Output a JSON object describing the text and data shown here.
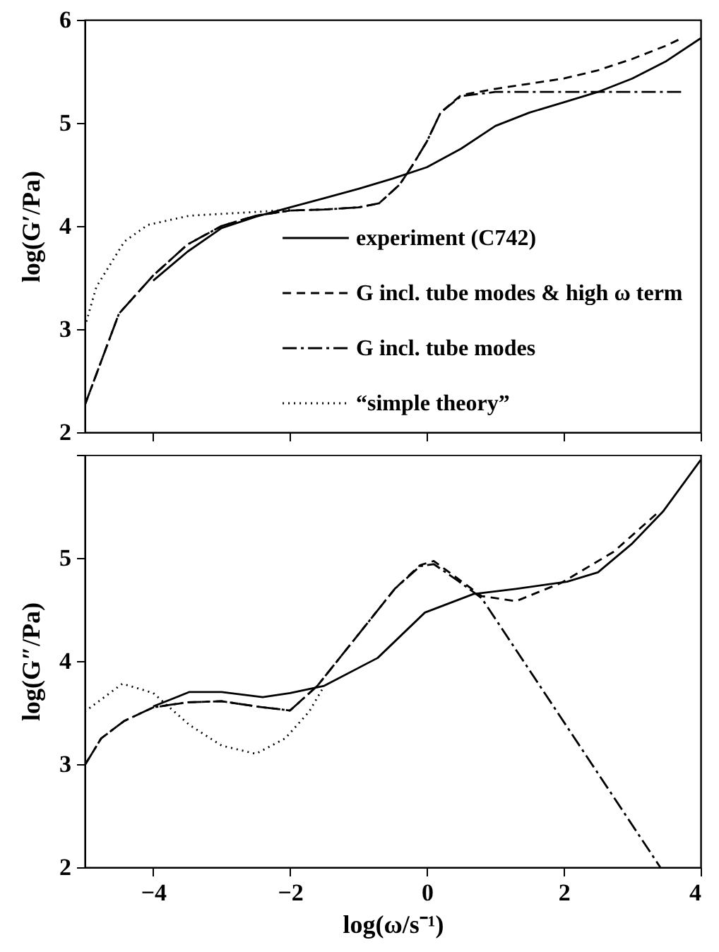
{
  "chart_data": [
    {
      "type": "line",
      "ylabel": "log(G′/Pa)",
      "xlim": [
        -5,
        4
      ],
      "xticks": [
        -4,
        -2,
        0,
        2,
        4
      ],
      "ylim": [
        2,
        6
      ],
      "yticks": [
        2,
        3,
        4,
        5,
        6
      ],
      "tick_labels": "y",
      "legend": "bottom right",
      "grid": false,
      "marker": "none",
      "series": [
        {
          "name": "experiment (C742)",
          "color": "#000000",
          "line_style": "solid",
          "x": [
            -4,
            -3.5,
            -3,
            -2.5,
            -2,
            -1.5,
            -1,
            -0.5,
            0,
            0.5,
            1,
            1.5,
            2,
            2.5,
            3,
            3.5,
            4
          ],
          "values": [
            3.47,
            3.75,
            3.98,
            4.09,
            4.18,
            4.27,
            4.36,
            4.46,
            4.57,
            4.75,
            4.97,
            5.1,
            5.2,
            5.3,
            5.43,
            5.6,
            5.82
          ]
        },
        {
          "name": "G incl. tube modes & high ω term",
          "color": "#000000",
          "line_style": "dashed",
          "x": [
            -5,
            -4.5,
            -4,
            -3.5,
            -3,
            -2.5,
            -2,
            -1.5,
            -1,
            -0.7,
            -0.4,
            -0.2,
            0,
            0.2,
            0.5,
            1,
            1.5,
            2,
            2.5,
            3,
            3.5,
            3.72
          ],
          "values": [
            2.26,
            3.15,
            3.52,
            3.82,
            4.0,
            4.1,
            4.15,
            4.16,
            4.18,
            4.22,
            4.4,
            4.6,
            4.82,
            5.1,
            5.27,
            5.33,
            5.38,
            5.43,
            5.51,
            5.62,
            5.75,
            5.82
          ]
        },
        {
          "name": "G incl. tube modes",
          "color": "#000000",
          "line_style": "dashdot",
          "x": [
            -5,
            -4.5,
            -4,
            -3.5,
            -3,
            -2.5,
            -2,
            -1.5,
            -1,
            -0.7,
            -0.4,
            -0.2,
            0,
            0.2,
            0.5,
            1,
            2,
            3,
            3.72
          ],
          "values": [
            2.26,
            3.15,
            3.52,
            3.82,
            4.0,
            4.1,
            4.15,
            4.16,
            4.18,
            4.22,
            4.4,
            4.6,
            4.82,
            5.1,
            5.26,
            5.3,
            5.3,
            5.3,
            5.3
          ]
        },
        {
          "name": "“simple theory”",
          "color": "#000000",
          "line_style": "dotted",
          "x": [
            -5,
            -4.83,
            -4.42,
            -4.08,
            -3.47,
            -2.4,
            -2
          ],
          "values": [
            3.02,
            3.41,
            3.85,
            4.01,
            4.1,
            4.14,
            4.16
          ]
        }
      ]
    },
    {
      "type": "line",
      "xlabel": "log(ω/s⁻¹)",
      "ylabel": "log(G″/Pa)",
      "xlim": [
        -5,
        4
      ],
      "xticks": [
        -4,
        -2,
        0,
        2,
        4
      ],
      "ylim": [
        2,
        6
      ],
      "yticks": [
        2,
        3,
        4,
        5,
        {
          "value": 6,
          "label": null
        }
      ],
      "grid": false,
      "marker": "none",
      "series": [
        {
          "color": "#000000",
          "line_style": "solid",
          "x": [
            -4,
            -3.47,
            -3,
            -2.4,
            -2,
            -1.5,
            -0.72,
            -0.03,
            0.68,
            1.3,
            2.05,
            2.5,
            3,
            3.45,
            4
          ],
          "values": [
            3.56,
            3.7,
            3.7,
            3.65,
            3.69,
            3.76,
            4.03,
            4.47,
            4.65,
            4.7,
            4.77,
            4.86,
            5.14,
            5.45,
            5.95
          ]
        },
        {
          "color": "#000000",
          "line_style": "dashed",
          "x": [
            -5,
            -4.76,
            -4.42,
            -4,
            -3.5,
            -3,
            -2.5,
            -2,
            -1.6,
            -0.95,
            -0.47,
            -0.1,
            0.1,
            0.45,
            0.8,
            1.3,
            1.97,
            2.73,
            3.41
          ],
          "values": [
            2.99,
            3.25,
            3.42,
            3.55,
            3.6,
            3.61,
            3.56,
            3.52,
            3.76,
            4.3,
            4.7,
            4.93,
            4.97,
            4.8,
            4.63,
            4.58,
            4.76,
            5.06,
            5.46
          ]
        },
        {
          "color": "#000000",
          "line_style": "dashdot",
          "x": [
            -5,
            -4.76,
            -4.42,
            -4,
            -3.5,
            -3,
            -2.5,
            -2,
            -1.6,
            -0.95,
            -0.47,
            -0.1,
            0.1,
            0.45,
            0.8,
            3.41
          ],
          "values": [
            2.99,
            3.25,
            3.42,
            3.55,
            3.6,
            3.61,
            3.56,
            3.52,
            3.76,
            4.3,
            4.7,
            4.92,
            4.94,
            4.78,
            4.61,
            2
          ]
        },
        {
          "color": "#000000",
          "line_style": "dotted",
          "x": [
            -5,
            -4.45,
            -4,
            -3.47,
            -3,
            -2.5,
            -2.07,
            -1.72,
            -1.5
          ],
          "values": [
            3.51,
            3.78,
            3.69,
            3.38,
            3.18,
            3.1,
            3.25,
            3.51,
            3.76
          ]
        }
      ]
    }
  ]
}
